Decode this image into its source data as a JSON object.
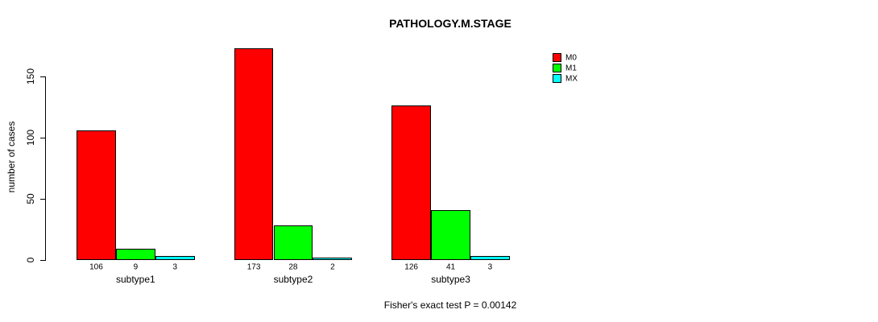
{
  "title": "PATHOLOGY.M.STAGE",
  "footer": "Fisher's exact test P = 0.00142",
  "chart_data": {
    "type": "bar",
    "title": "PATHOLOGY.M.STAGE",
    "categories": [
      "subtype1",
      "subtype2",
      "subtype3"
    ],
    "series": [
      {
        "name": "M0",
        "color": "#ff0000",
        "values": [
          106,
          173,
          126
        ]
      },
      {
        "name": "M1",
        "color": "#00ff00",
        "values": [
          9,
          28,
          41
        ]
      },
      {
        "name": "MX",
        "color": "#00ffff",
        "values": [
          3,
          2,
          3
        ]
      }
    ],
    "xlabel": "",
    "ylabel": "number of cases",
    "yticks": [
      0,
      50,
      100,
      150
    ],
    "ylim": [
      0,
      178
    ],
    "grid": false,
    "legend_position": "top-right",
    "bar_border_color": "#000000",
    "value_labels_shown": true,
    "annotation": "Fisher's exact test P = 0.00142"
  }
}
